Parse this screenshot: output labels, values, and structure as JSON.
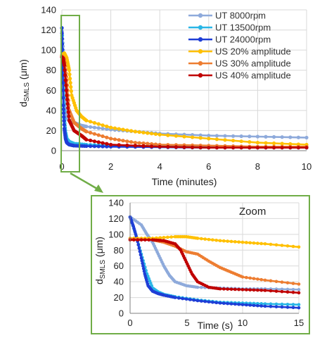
{
  "chart_data": [
    {
      "type": "line",
      "panel": "main",
      "xlabel": "Time (minutes)",
      "ylabel_main": "d",
      "ylabel_sub": "SMLS",
      "ylabel_unit": " (μm)",
      "xlim": [
        0,
        10
      ],
      "ylim": [
        0,
        140
      ],
      "xticks": [
        0,
        2,
        4,
        6,
        8,
        10
      ],
      "yticks": [
        0,
        20,
        40,
        60,
        80,
        100,
        120,
        140
      ],
      "grid": true,
      "legend_position": "top-right",
      "series": [
        {
          "name": "UT 8000rpm",
          "color": "#8eaadb",
          "x": [
            0,
            0.05,
            0.1,
            0.15,
            0.2,
            0.3,
            0.5,
            0.8,
            1,
            2,
            3,
            4,
            6,
            8,
            10
          ],
          "y": [
            122,
            100,
            65,
            42,
            33,
            30,
            28,
            25,
            24,
            21,
            19,
            17,
            15,
            14,
            13
          ]
        },
        {
          "name": "UT 13500rpm",
          "color": "#29b6e6",
          "x": [
            0,
            0.05,
            0.1,
            0.15,
            0.2,
            0.3,
            0.5,
            1,
            2,
            4,
            6,
            8,
            10
          ],
          "y": [
            122,
            75,
            32,
            18,
            12,
            9,
            7,
            6,
            5,
            4.5,
            4,
            4,
            4
          ]
        },
        {
          "name": "UT 24000rpm",
          "color": "#1f3ed6",
          "x": [
            0,
            0.03,
            0.06,
            0.1,
            0.15,
            0.2,
            0.3,
            0.5,
            1,
            2,
            4,
            6,
            8,
            10
          ],
          "y": [
            122,
            90,
            45,
            22,
            12,
            8,
            6,
            5,
            4.5,
            4,
            3.5,
            3,
            3,
            3
          ]
        },
        {
          "name": "US 20% amplitude",
          "color": "#ffc000",
          "x": [
            0,
            0.1,
            0.2,
            0.3,
            0.4,
            0.6,
            0.8,
            1,
            2,
            3,
            4,
            6,
            8,
            10
          ],
          "y": [
            95,
            97,
            92,
            80,
            55,
            40,
            34,
            30,
            23,
            19,
            16,
            12,
            8,
            6
          ]
        },
        {
          "name": "US 30% amplitude",
          "color": "#ed7d31",
          "x": [
            0,
            0.1,
            0.2,
            0.3,
            0.5,
            0.8,
            1,
            2,
            3,
            4,
            6,
            8,
            10
          ],
          "y": [
            94,
            91,
            70,
            40,
            28,
            22,
            19,
            12,
            8,
            6,
            5,
            4,
            4
          ]
        },
        {
          "name": "US 40% amplitude",
          "color": "#c00000",
          "x": [
            0,
            0.05,
            0.1,
            0.2,
            0.3,
            0.5,
            0.8,
            1,
            2,
            4,
            6,
            8,
            10
          ],
          "y": [
            93,
            92,
            85,
            55,
            30,
            20,
            15,
            11,
            6,
            4,
            3,
            3,
            3
          ]
        }
      ]
    },
    {
      "type": "line",
      "panel": "zoom",
      "title": "Zoom",
      "xlabel": "Time (s)",
      "ylabel_main": "d",
      "ylabel_sub": "SMLS",
      "ylabel_unit": " (μm)",
      "xlim": [
        0,
        15
      ],
      "ylim": [
        0,
        140
      ],
      "xticks": [
        0,
        5,
        10,
        15
      ],
      "yticks": [
        0,
        20,
        40,
        60,
        80,
        100,
        120,
        140
      ],
      "grid": true,
      "series": [
        {
          "name": "UT 8000rpm",
          "color": "#8eaadb",
          "x": [
            0,
            1,
            1.5,
            2,
            2.5,
            3,
            3.5,
            4,
            5,
            6,
            8,
            10,
            12,
            15
          ],
          "y": [
            122,
            112,
            100,
            90,
            75,
            60,
            48,
            40,
            35,
            33,
            32,
            31,
            31,
            30
          ]
        },
        {
          "name": "UT 13500rpm",
          "color": "#29b6e6",
          "x": [
            0,
            0.5,
            1,
            1.5,
            2,
            2.5,
            3,
            4,
            6,
            8,
            10,
            12,
            15
          ],
          "y": [
            122,
            100,
            75,
            50,
            32,
            27,
            24,
            21,
            17,
            14,
            13,
            12,
            11
          ]
        },
        {
          "name": "UT 24000rpm",
          "color": "#1f3ed6",
          "x": [
            0,
            0.3,
            0.6,
            1,
            1.3,
            1.6,
            2,
            2.5,
            3,
            4,
            6,
            8,
            10,
            12,
            15
          ],
          "y": [
            122,
            110,
            95,
            70,
            50,
            35,
            28,
            25,
            23,
            20,
            16,
            13,
            11,
            9,
            7
          ]
        },
        {
          "name": "US 20% amplitude",
          "color": "#ffc000",
          "x": [
            0,
            2,
            4,
            5,
            6,
            8,
            10,
            12,
            15
          ],
          "y": [
            95,
            95,
            97,
            97,
            95,
            92,
            90,
            88,
            84
          ]
        },
        {
          "name": "US 30% amplitude",
          "color": "#ed7d31",
          "x": [
            0,
            2,
            3,
            4,
            5,
            6,
            7,
            8,
            9,
            10,
            12,
            15
          ],
          "y": [
            94,
            93,
            90,
            85,
            78,
            75,
            66,
            58,
            52,
            46,
            42,
            37
          ]
        },
        {
          "name": "US 40% amplitude",
          "color": "#c00000",
          "x": [
            0,
            2,
            3,
            4,
            4.5,
            5,
            5.5,
            6,
            7,
            8,
            10,
            12,
            15
          ],
          "y": [
            93,
            93,
            92,
            88,
            80,
            65,
            50,
            40,
            33,
            31,
            30,
            29,
            26
          ]
        }
      ]
    }
  ],
  "colors": {
    "connector": "#70ad47",
    "grid": "#d9d9d9",
    "axis": "#7f7f7f"
  }
}
